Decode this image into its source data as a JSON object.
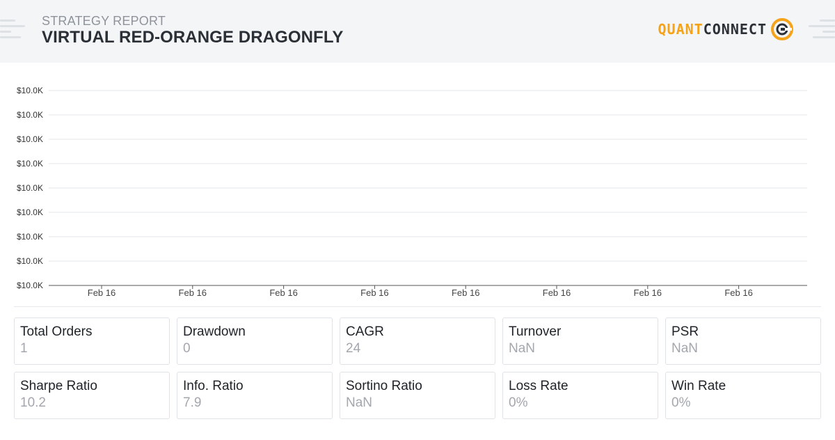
{
  "header": {
    "subtitle": "STRATEGY REPORT",
    "title": "VIRTUAL RED-ORANGE DRAGONFLY",
    "logo": {
      "part1": "QUANT",
      "part2": "CONNECT",
      "accent_color": "#f5a31a",
      "dark_color": "#2b2f36"
    }
  },
  "chart_data": {
    "type": "line",
    "y_tick_labels": [
      "$10.0K",
      "$10.0K",
      "$10.0K",
      "$10.0K",
      "$10.0K",
      "$10.0K",
      "$10.0K",
      "$10.0K",
      "$10.0K"
    ],
    "x_tick_labels": [
      "Feb 16",
      "Feb 16",
      "Feb 16",
      "Feb 16",
      "Feb 16",
      "Feb 16",
      "Feb 16",
      "Feb 16"
    ],
    "series": [
      {
        "values": [
          10000,
          10000
        ]
      }
    ],
    "grid": true
  },
  "stats": [
    {
      "label": "Total Orders",
      "value": "1"
    },
    {
      "label": "Drawdown",
      "value": "0"
    },
    {
      "label": "CAGR",
      "value": "24"
    },
    {
      "label": "Turnover",
      "value": "NaN"
    },
    {
      "label": "PSR",
      "value": "NaN"
    },
    {
      "label": "Sharpe Ratio",
      "value": "10.2"
    },
    {
      "label": "Info. Ratio",
      "value": "7.9"
    },
    {
      "label": "Sortino Ratio",
      "value": "NaN"
    },
    {
      "label": "Loss Rate",
      "value": "0%"
    },
    {
      "label": "Win Rate",
      "value": "0%"
    }
  ]
}
